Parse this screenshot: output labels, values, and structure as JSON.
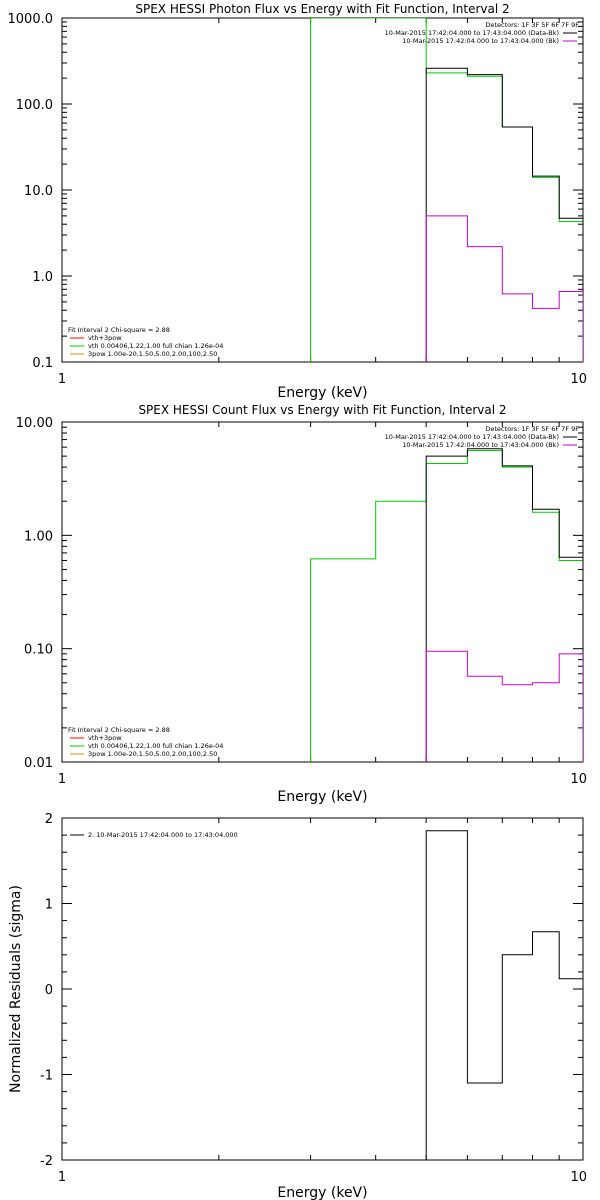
{
  "chart_data": [
    {
      "type": "line",
      "title": "SPEX HESSI Photon Flux vs Energy with Fit Function, Interval 2",
      "xlabel": "Energy (keV)",
      "ylabel": "",
      "x_scale": "log",
      "y_scale": "log",
      "xlim": [
        1,
        10
      ],
      "ylim": [
        0.1,
        1000
      ],
      "x_ticks": [
        {
          "v": 1,
          "label": "1"
        },
        {
          "v": 10,
          "label": "10"
        }
      ],
      "y_ticks": [
        {
          "v": 1000,
          "label": "1000.0"
        },
        {
          "v": 100,
          "label": "100.0"
        },
        {
          "v": 10,
          "label": "10.0"
        },
        {
          "v": 1,
          "label": "1.0"
        },
        {
          "v": 0.1,
          "label": "0.1"
        }
      ],
      "legend_topright": [
        {
          "text": "Detectors: 1F 3F 5F 6F 7F 9F",
          "color": ""
        },
        {
          "text": "10-Mar-2015 17:42:04.000 to 17:43:04.000 (Data-Bk)",
          "color": "#000000"
        },
        {
          "text": "10-Mar-2015 17:42:04.000 to 17:43:04.000 (Bk)",
          "color": "#cc00cc"
        }
      ],
      "legend_bottomleft": [
        {
          "text": "Fit Interval 2   Chi-square = 2.88",
          "color": ""
        },
        {
          "text": "vth+3pow",
          "color": "#ff0000"
        },
        {
          "text": "vth 0.00406,1.22,1.00  full chian 1.26e-04",
          "color": "#00cc00"
        },
        {
          "text": "3pow 1.00e-20,1.50,5.00,2.00,100,2.50",
          "color": "#cc9900"
        }
      ],
      "series": [
        {
          "color": "#00cc00",
          "steps": [
            [
              3.0,
              4.0,
              1000.0
            ],
            [
              4.0,
              5.0,
              1000.0
            ],
            [
              5.0,
              6.0,
              230.0
            ],
            [
              6.0,
              7.0,
              210.0
            ],
            [
              7.0,
              8.0,
              54.0
            ],
            [
              8.0,
              9.0,
              14.0
            ],
            [
              9.0,
              10.0,
              4.3
            ]
          ]
        },
        {
          "color": "#000000",
          "steps": [
            [
              5.0,
              6.0,
              260.0
            ],
            [
              6.0,
              7.0,
              220.0
            ],
            [
              7.0,
              8.0,
              54.0
            ],
            [
              8.0,
              9.0,
              14.5
            ],
            [
              9.0,
              10.0,
              4.7
            ]
          ]
        },
        {
          "color": "#cc00cc",
          "steps": [
            [
              5.0,
              6.0,
              5.0
            ],
            [
              6.0,
              7.0,
              2.2
            ],
            [
              7.0,
              8.0,
              0.62
            ],
            [
              8.0,
              9.0,
              0.42
            ],
            [
              9.0,
              10.0,
              0.66
            ]
          ]
        }
      ]
    },
    {
      "type": "line",
      "title": "SPEX HESSI Count Flux vs Energy with Fit Function, Interval 2",
      "xlabel": "Energy (keV)",
      "ylabel": "",
      "x_scale": "log",
      "y_scale": "log",
      "xlim": [
        1,
        10
      ],
      "ylim": [
        0.01,
        10
      ],
      "x_ticks": [
        {
          "v": 1,
          "label": "1"
        },
        {
          "v": 10,
          "label": "10"
        }
      ],
      "y_ticks": [
        {
          "v": 10,
          "label": "10.00"
        },
        {
          "v": 1,
          "label": "1.00"
        },
        {
          "v": 0.1,
          "label": "0.10"
        },
        {
          "v": 0.01,
          "label": "0.01"
        }
      ],
      "legend_topright": [
        {
          "text": "Detectors: 1F 3F 5F 6F 7F 9F",
          "color": ""
        },
        {
          "text": "10-Mar-2015 17:42:04.000 to 17:43:04.000 (Data-Bk)",
          "color": "#000000"
        },
        {
          "text": "10-Mar-2015 17:42:04.000 to 17:43:04.000 (Bk)",
          "color": "#cc00cc"
        }
      ],
      "legend_bottomleft": [
        {
          "text": "Fit Interval 2   Chi-square = 2.88",
          "color": ""
        },
        {
          "text": "vth+3pow",
          "color": "#ff0000"
        },
        {
          "text": "vth 0.00406,1.22,1.00  full chian 1.26e-04",
          "color": "#00cc00"
        },
        {
          "text": "3pow 1.00e-20,1.50,5.00,2.00,100,2.50",
          "color": "#cc9900"
        }
      ],
      "series": [
        {
          "color": "#00cc00",
          "steps": [
            [
              3.0,
              4.0,
              0.62
            ],
            [
              4.0,
              5.0,
              2.0
            ],
            [
              5.0,
              6.0,
              4.3
            ],
            [
              6.0,
              7.0,
              5.6
            ],
            [
              7.0,
              8.0,
              4.0
            ],
            [
              8.0,
              9.0,
              1.6
            ],
            [
              9.0,
              10.0,
              0.6
            ]
          ]
        },
        {
          "color": "#000000",
          "steps": [
            [
              5.0,
              6.0,
              5.0
            ],
            [
              6.0,
              7.0,
              5.8
            ],
            [
              7.0,
              8.0,
              4.1
            ],
            [
              8.0,
              9.0,
              1.7
            ],
            [
              9.0,
              10.0,
              0.64
            ]
          ]
        },
        {
          "color": "#cc00cc",
          "steps": [
            [
              5.0,
              6.0,
              0.095
            ],
            [
              6.0,
              7.0,
              0.057
            ],
            [
              7.0,
              8.0,
              0.048
            ],
            [
              8.0,
              9.0,
              0.05
            ],
            [
              9.0,
              10.0,
              0.09
            ]
          ]
        }
      ]
    },
    {
      "type": "line",
      "title": "",
      "xlabel": "Energy (keV)",
      "ylabel": "Normalized Residuals (sigma)",
      "x_scale": "log",
      "y_scale": "linear",
      "xlim": [
        1,
        10
      ],
      "ylim": [
        -2,
        2
      ],
      "x_ticks": [
        {
          "v": 1,
          "label": "1"
        },
        {
          "v": 10,
          "label": "10"
        }
      ],
      "y_ticks": [
        {
          "v": 2,
          "label": "2"
        },
        {
          "v": 1,
          "label": "1"
        },
        {
          "v": 0,
          "label": "0"
        },
        {
          "v": -1,
          "label": "-1"
        },
        {
          "v": -2,
          "label": "-2"
        }
      ],
      "legend_topleft": [
        {
          "text": "2. 10-Mar-2015 17:42:04.000 to 17:43:04.000",
          "color": "#000000"
        }
      ],
      "series": [
        {
          "color": "#000000",
          "steps": [
            [
              5.0,
              6.0,
              1.85
            ],
            [
              6.0,
              7.0,
              -1.1
            ],
            [
              7.0,
              8.0,
              0.4
            ],
            [
              8.0,
              9.0,
              0.67
            ],
            [
              9.0,
              10.0,
              0.12
            ]
          ]
        }
      ]
    }
  ]
}
